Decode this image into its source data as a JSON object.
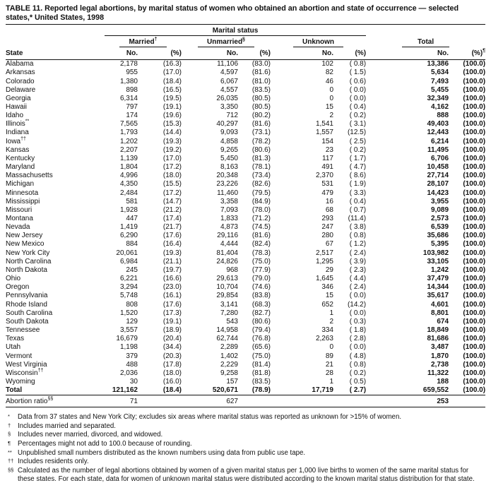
{
  "title": "TABLE 11. Reported legal abortions, by marital status of women who obtained an abortion and state of occurrence — selected states,* United States, 1998",
  "colors": {
    "text": "#121212",
    "background": "#ffffff"
  },
  "table": {
    "header": {
      "spanner": "Marital status",
      "state_label": "State",
      "groups": [
        {
          "label": "Married",
          "marker": "†"
        },
        {
          "label": "Unmarried",
          "marker": "§"
        },
        {
          "label": "Unknown",
          "marker": ""
        },
        {
          "label": "Total",
          "marker": ""
        }
      ],
      "no_label": "No.",
      "pct_label": "(%)",
      "total_pct_marker": "¶"
    },
    "columns_order": [
      "state",
      "state_marker",
      "married_no",
      "married_pct",
      "unmarried_no",
      "unmarried_pct",
      "unknown_no",
      "unknown_pct",
      "total_no",
      "total_pct"
    ],
    "rows": [
      [
        "Alabama",
        "",
        "2,178",
        "(16.3)",
        "11,106",
        "(83.0)",
        "102",
        "( 0.8)",
        "13,386",
        "(100.0)"
      ],
      [
        "Arkansas",
        "",
        "955",
        "(17.0)",
        "4,597",
        "(81.6)",
        "82",
        "( 1.5)",
        "5,634",
        "(100.0)"
      ],
      [
        "Colorado",
        "",
        "1,380",
        "(18.4)",
        "6,067",
        "(81.0)",
        "46",
        "( 0.6)",
        "7,493",
        "(100.0)"
      ],
      [
        "Delaware",
        "",
        "898",
        "(16.5)",
        "4,557",
        "(83.5)",
        "0",
        "( 0.0)",
        "5,455",
        "(100.0)"
      ],
      [
        "Georgia",
        "",
        "6,314",
        "(19.5)",
        "26,035",
        "(80.5)",
        "0",
        "( 0.0)",
        "32,349",
        "(100.0)"
      ],
      [
        "Hawaii",
        "",
        "797",
        "(19.1)",
        "3,350",
        "(80.5)",
        "15",
        "( 0.4)",
        "4,162",
        "(100.0)"
      ],
      [
        "Idaho",
        "",
        "174",
        "(19.6)",
        "712",
        "(80.2)",
        "2",
        "( 0.2)",
        "888",
        "(100.0)"
      ],
      [
        "Illinois",
        "**",
        "7,565",
        "(15.3)",
        "40,297",
        "(81.6)",
        "1,541",
        "( 3.1)",
        "49,403",
        "(100.0)"
      ],
      [
        "Indiana",
        "",
        "1,793",
        "(14.4)",
        "9,093",
        "(73.1)",
        "1,557",
        "(12.5)",
        "12,443",
        "(100.0)"
      ],
      [
        "Iowa",
        "††",
        "1,202",
        "(19.3)",
        "4,858",
        "(78.2)",
        "154",
        "( 2.5)",
        "6,214",
        "(100.0)"
      ],
      [
        "Kansas",
        "",
        "2,207",
        "(19.2)",
        "9,265",
        "(80.6)",
        "23",
        "( 0.2)",
        "11,495",
        "(100.0)"
      ],
      [
        "Kentucky",
        "",
        "1,139",
        "(17.0)",
        "5,450",
        "(81.3)",
        "117",
        "( 1.7)",
        "6,706",
        "(100.0)"
      ],
      [
        "Maryland",
        "",
        "1,804",
        "(17.2)",
        "8,163",
        "(78.1)",
        "491",
        "( 4.7)",
        "10,458",
        "(100.0)"
      ],
      [
        "Massachusetts",
        "",
        "4,996",
        "(18.0)",
        "20,348",
        "(73.4)",
        "2,370",
        "( 8.6)",
        "27,714",
        "(100.0)"
      ],
      [
        "Michigan",
        "",
        "4,350",
        "(15.5)",
        "23,226",
        "(82.6)",
        "531",
        "( 1.9)",
        "28,107",
        "(100.0)"
      ],
      [
        "Minnesota",
        "",
        "2,484",
        "(17.2)",
        "11,460",
        "(79.5)",
        "479",
        "( 3.3)",
        "14,423",
        "(100.0)"
      ],
      [
        "Mississippi",
        "",
        "581",
        "(14.7)",
        "3,358",
        "(84.9)",
        "16",
        "( 0.4)",
        "3,955",
        "(100.0)"
      ],
      [
        "Missouri",
        "",
        "1,928",
        "(21.2)",
        "7,093",
        "(78.0)",
        "68",
        "( 0.7)",
        "9,089",
        "(100.0)"
      ],
      [
        "Montana",
        "",
        "447",
        "(17.4)",
        "1,833",
        "(71.2)",
        "293",
        "(11.4)",
        "2,573",
        "(100.0)"
      ],
      [
        "Nevada",
        "",
        "1,419",
        "(21.7)",
        "4,873",
        "(74.5)",
        "247",
        "( 3.8)",
        "6,539",
        "(100.0)"
      ],
      [
        "New Jersey",
        "",
        "6,290",
        "(17.6)",
        "29,116",
        "(81.6)",
        "280",
        "( 0.8)",
        "35,686",
        "(100.0)"
      ],
      [
        "New Mexico",
        "",
        "884",
        "(16.4)",
        "4,444",
        "(82.4)",
        "67",
        "( 1.2)",
        "5,395",
        "(100.0)"
      ],
      [
        "New York City",
        "",
        "20,061",
        "(19.3)",
        "81,404",
        "(78.3)",
        "2,517",
        "( 2.4)",
        "103,982",
        "(100.0)"
      ],
      [
        "North Carolina",
        "",
        "6,984",
        "(21.1)",
        "24,826",
        "(75.0)",
        "1,295",
        "( 3.9)",
        "33,105",
        "(100.0)"
      ],
      [
        "North Dakota",
        "",
        "245",
        "(19.7)",
        "968",
        "(77.9)",
        "29",
        "( 2.3)",
        "1,242",
        "(100.0)"
      ],
      [
        "Ohio",
        "",
        "6,221",
        "(16.6)",
        "29,613",
        "(79.0)",
        "1,645",
        "( 4.4)",
        "37,479",
        "(100.0)"
      ],
      [
        "Oregon",
        "",
        "3,294",
        "(23.0)",
        "10,704",
        "(74.6)",
        "346",
        "( 2.4)",
        "14,344",
        "(100.0)"
      ],
      [
        "Pennsylvania",
        "",
        "5,748",
        "(16.1)",
        "29,854",
        "(83.8)",
        "15",
        "( 0.0)",
        "35,617",
        "(100.0)"
      ],
      [
        "Rhode Island",
        "",
        "808",
        "(17.6)",
        "3,141",
        "(68.3)",
        "652",
        "(14.2)",
        "4,601",
        "(100.0)"
      ],
      [
        "South Carolina",
        "",
        "1,520",
        "(17.3)",
        "7,280",
        "(82.7)",
        "1",
        "( 0.0)",
        "8,801",
        "(100.0)"
      ],
      [
        "South Dakota",
        "",
        "129",
        "(19.1)",
        "543",
        "(80.6)",
        "2",
        "( 0.3)",
        "674",
        "(100.0)"
      ],
      [
        "Tennessee",
        "",
        "3,557",
        "(18.9)",
        "14,958",
        "(79.4)",
        "334",
        "( 1.8)",
        "18,849",
        "(100.0)"
      ],
      [
        "Texas",
        "",
        "16,679",
        "(20.4)",
        "62,744",
        "(76.8)",
        "2,263",
        "( 2.8)",
        "81,686",
        "(100.0)"
      ],
      [
        "Utah",
        "",
        "1,198",
        "(34.4)",
        "2,289",
        "(65.6)",
        "0",
        "( 0.0)",
        "3,487",
        "(100.0)"
      ],
      [
        "Vermont",
        "",
        "379",
        "(20.3)",
        "1,402",
        "(75.0)",
        "89",
        "( 4.8)",
        "1,870",
        "(100.0)"
      ],
      [
        "West Virginia",
        "",
        "488",
        "(17.8)",
        "2,229",
        "(81.4)",
        "21",
        "( 0.8)",
        "2,738",
        "(100.0)"
      ],
      [
        "Wisconsin",
        "††",
        "2,036",
        "(18.0)",
        "9,258",
        "(81.8)",
        "28",
        "( 0.2)",
        "11,322",
        "(100.0)"
      ],
      [
        "Wyoming",
        "",
        "30",
        "(16.0)",
        "157",
        "(83.5)",
        "1",
        "( 0.5)",
        "188",
        "(100.0)"
      ]
    ],
    "total_row": [
      "Total",
      "",
      "121,162",
      "(18.4)",
      "520,671",
      "(78.9)",
      "17,719",
      "( 2.7)",
      "659,552",
      "(100.0)"
    ],
    "ratio_row": [
      "Abortion ratio",
      "§§",
      "71",
      "",
      "627",
      "",
      "",
      "",
      "253",
      ""
    ]
  },
  "footnotes": [
    {
      "marker": "*",
      "text": "Data from 37 states and New York City; excludes six areas where marital status was reported as unknown for >15% of women."
    },
    {
      "marker": "†",
      "text": "Includes married and separated."
    },
    {
      "marker": "§",
      "text": "Includes never married, divorced, and widowed."
    },
    {
      "marker": "¶",
      "text": "Percentages might not add to 100.0 because of rounding."
    },
    {
      "marker": "**",
      "text": "Unpublished small numbers distributed as the known numbers using data from public use tape."
    },
    {
      "marker": "††",
      "text": "Includes residents only."
    },
    {
      "marker": "§§",
      "text": "Calculated as the number of legal abortions obtained by women of a given marital status per 1,000 live births to women of the same marital status for these states. For each state, data for women of unknown marital status were distributed according to the known marital status distribution for that state."
    }
  ]
}
